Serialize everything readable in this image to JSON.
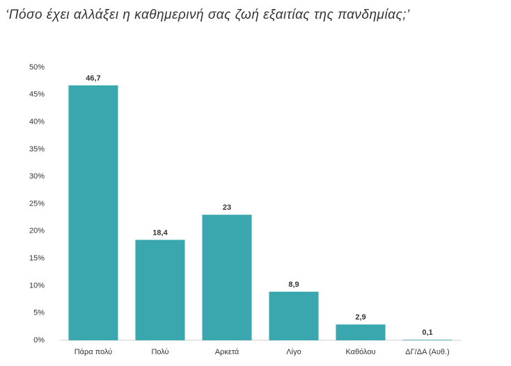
{
  "chart_data": {
    "type": "bar",
    "title": "‘Πόσο έχει αλλάξει η καθημερινή σας ζωή εξαιτίας της πανδημίας;’",
    "categories": [
      "Πάρα πολύ",
      "Πολύ",
      "Αρκετά",
      "Λίγο",
      "Καθόλου",
      "ΔΓ/ΔΑ (Αυθ.)"
    ],
    "values": [
      46.7,
      18.4,
      23,
      8.9,
      2.9,
      0.1
    ],
    "value_labels": [
      "46,7",
      "18,4",
      "23",
      "8,9",
      "2,9",
      "0,1"
    ],
    "color": "#3aa6ad",
    "ylim": [
      0,
      50
    ],
    "yticks": [
      {
        "value": 0,
        "label": "0%"
      },
      {
        "value": 5,
        "label": "5%"
      },
      {
        "value": 10,
        "label": "10%"
      },
      {
        "value": 15,
        "label": "15%"
      },
      {
        "value": 20,
        "label": "20%"
      },
      {
        "value": 25,
        "label": "25%"
      },
      {
        "value": 30,
        "label": "30%"
      },
      {
        "value": 35,
        "label": "35%"
      },
      {
        "value": 40,
        "label": "40%"
      },
      {
        "value": 45,
        "label": "45%"
      },
      {
        "value": 50,
        "label": "50%"
      }
    ],
    "grid": false
  }
}
